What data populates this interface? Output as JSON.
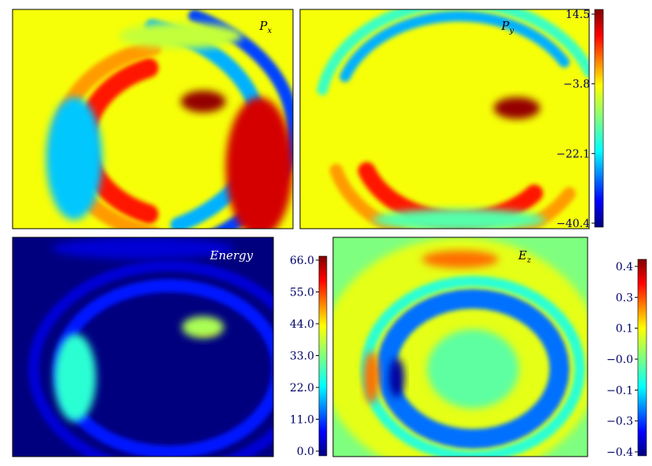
{
  "chart_data": [
    {
      "type": "heatmap",
      "title": "P_x",
      "title_parts": {
        "main": "P",
        "sub": "x"
      },
      "colorbar": "shared-top",
      "colormap": "jet",
      "background_level": 0.64,
      "features": [
        {
          "kind": "arc",
          "cx": 0.62,
          "cy": 0.6,
          "rx": 0.36,
          "ry": 0.36,
          "start_deg": 112,
          "end_deg": 248,
          "level": 0.86,
          "width": 0.09
        },
        {
          "kind": "arc",
          "cx": 0.62,
          "cy": 0.6,
          "rx": 0.45,
          "ry": 0.44,
          "start_deg": 105,
          "end_deg": 255,
          "level": 0.74,
          "width": 0.07
        },
        {
          "kind": "arc",
          "cx": 0.3,
          "cy": 0.55,
          "rx": 0.58,
          "ry": 0.5,
          "start_deg": 300,
          "end_deg": 430,
          "level": 0.28,
          "width": 0.07
        },
        {
          "kind": "arc",
          "cx": 0.3,
          "cy": 0.55,
          "rx": 0.7,
          "ry": 0.6,
          "start_deg": 300,
          "end_deg": 420,
          "level": 0.18,
          "width": 0.06
        },
        {
          "kind": "blob",
          "cx": 0.22,
          "cy": 0.68,
          "rx": 0.06,
          "ry": 0.14,
          "level": 0.05
        },
        {
          "kind": "blob",
          "cx": 0.22,
          "cy": 0.68,
          "rx": 0.1,
          "ry": 0.28,
          "level": 0.3
        },
        {
          "kind": "blob",
          "cx": 0.68,
          "cy": 0.42,
          "rx": 0.08,
          "ry": 0.05,
          "level": 0.98
        },
        {
          "kind": "blob",
          "cx": 0.88,
          "cy": 0.72,
          "rx": 0.12,
          "ry": 0.32,
          "level": 0.92
        },
        {
          "kind": "blob",
          "cx": 0.6,
          "cy": 0.12,
          "rx": 0.22,
          "ry": 0.06,
          "level": 0.58
        }
      ]
    },
    {
      "type": "heatmap",
      "title": "P_y",
      "title_parts": {
        "main": "P",
        "sub": "y"
      },
      "colorbar": "shared-top",
      "colormap": "jet",
      "background_level": 0.64,
      "features": [
        {
          "kind": "arc",
          "cx": 0.55,
          "cy": 0.62,
          "rx": 0.34,
          "ry": 0.34,
          "start_deg": 200,
          "end_deg": 320,
          "level": 0.86,
          "width": 0.08
        },
        {
          "kind": "arc",
          "cx": 0.55,
          "cy": 0.62,
          "rx": 0.44,
          "ry": 0.44,
          "start_deg": 195,
          "end_deg": 330,
          "level": 0.74,
          "width": 0.06
        },
        {
          "kind": "arc",
          "cx": 0.55,
          "cy": 0.45,
          "rx": 0.42,
          "ry": 0.42,
          "start_deg": 30,
          "end_deg": 160,
          "level": 0.28,
          "width": 0.05
        },
        {
          "kind": "arc",
          "cx": 0.55,
          "cy": 0.45,
          "rx": 0.48,
          "ry": 0.48,
          "start_deg": 20,
          "end_deg": 170,
          "level": 0.42,
          "width": 0.05
        },
        {
          "kind": "blob",
          "cx": 0.75,
          "cy": 0.45,
          "rx": 0.08,
          "ry": 0.05,
          "level": 0.98
        },
        {
          "kind": "blob",
          "cx": 0.55,
          "cy": 0.96,
          "rx": 0.3,
          "ry": 0.05,
          "level": 0.45
        }
      ]
    },
    {
      "type": "heatmap",
      "title": "Energy",
      "colormap": "jet",
      "background_level": 0.0,
      "colorbar": {
        "ticks": [
          "66.0",
          "55.0",
          "44.0",
          "33.0",
          "22.0",
          "11.0",
          "0.0"
        ],
        "range": [
          0.0,
          66.0
        ]
      },
      "features": [
        {
          "kind": "arc",
          "cx": 0.6,
          "cy": 0.6,
          "rx": 0.42,
          "ry": 0.38,
          "start_deg": 0,
          "end_deg": 360,
          "level": 0.14,
          "width": 0.06
        },
        {
          "kind": "arc",
          "cx": 0.6,
          "cy": 0.6,
          "rx": 0.52,
          "ry": 0.47,
          "start_deg": 0,
          "end_deg": 360,
          "level": 0.08,
          "width": 0.05
        },
        {
          "kind": "blob",
          "cx": 0.24,
          "cy": 0.64,
          "rx": 0.04,
          "ry": 0.1,
          "level": 0.85
        },
        {
          "kind": "blob",
          "cx": 0.24,
          "cy": 0.64,
          "rx": 0.08,
          "ry": 0.2,
          "level": 0.4
        },
        {
          "kind": "blob",
          "cx": 0.74,
          "cy": 0.42,
          "rx": 0.04,
          "ry": 0.025,
          "level": 0.95
        },
        {
          "kind": "blob",
          "cx": 0.73,
          "cy": 0.41,
          "rx": 0.08,
          "ry": 0.05,
          "level": 0.55
        },
        {
          "kind": "blob",
          "cx": 0.5,
          "cy": 0.05,
          "rx": 0.35,
          "ry": 0.05,
          "level": 0.08
        }
      ]
    },
    {
      "type": "heatmap",
      "title": "E_z",
      "title_parts": {
        "main": "E",
        "sub": "z"
      },
      "colormap": "jet",
      "background_level": 0.5,
      "colorbar": {
        "ticks": [
          "0.4",
          "0.3",
          "0.1",
          "−0.0",
          "−0.1",
          "−0.3",
          "−0.4"
        ],
        "range": [
          -0.4,
          0.4
        ]
      },
      "features": [
        {
          "kind": "blob",
          "cx": 0.5,
          "cy": 0.55,
          "rx": 0.55,
          "ry": 0.55,
          "level": 0.62
        },
        {
          "kind": "arc",
          "cx": 0.55,
          "cy": 0.6,
          "rx": 0.34,
          "ry": 0.32,
          "start_deg": 0,
          "end_deg": 360,
          "level": 0.22,
          "width": 0.09
        },
        {
          "kind": "arc",
          "cx": 0.55,
          "cy": 0.6,
          "rx": 0.42,
          "ry": 0.4,
          "start_deg": 0,
          "end_deg": 360,
          "level": 0.4,
          "width": 0.05
        },
        {
          "kind": "blob",
          "cx": 0.55,
          "cy": 0.6,
          "rx": 0.18,
          "ry": 0.18,
          "level": 0.46
        },
        {
          "kind": "blob",
          "cx": 0.25,
          "cy": 0.64,
          "rx": 0.03,
          "ry": 0.09,
          "level": 0.03
        },
        {
          "kind": "blob",
          "cx": 0.15,
          "cy": 0.64,
          "rx": 0.03,
          "ry": 0.12,
          "level": 0.78
        },
        {
          "kind": "blob",
          "cx": 0.5,
          "cy": 0.1,
          "rx": 0.15,
          "ry": 0.04,
          "level": 0.78
        }
      ]
    }
  ],
  "shared_colorbar_top": {
    "ticks": [
      "14.5",
      "−3.8",
      "−22.1",
      "−40.4"
    ],
    "range": [
      -40.4,
      14.5
    ]
  }
}
